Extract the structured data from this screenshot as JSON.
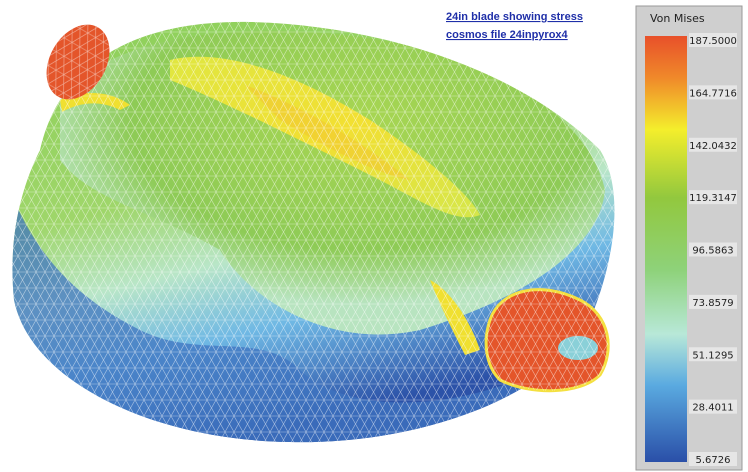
{
  "caption": {
    "line1": "24in blade showing stress",
    "line2": "cosmos file 24inpyrox4"
  },
  "legend": {
    "title": "Von Mises",
    "ticks": [
      "187.5000",
      "164.7716",
      "142.0432",
      "119.3147",
      "96.5863",
      "73.8579",
      "51.1295",
      "28.4011",
      "5.6726"
    ]
  }
}
